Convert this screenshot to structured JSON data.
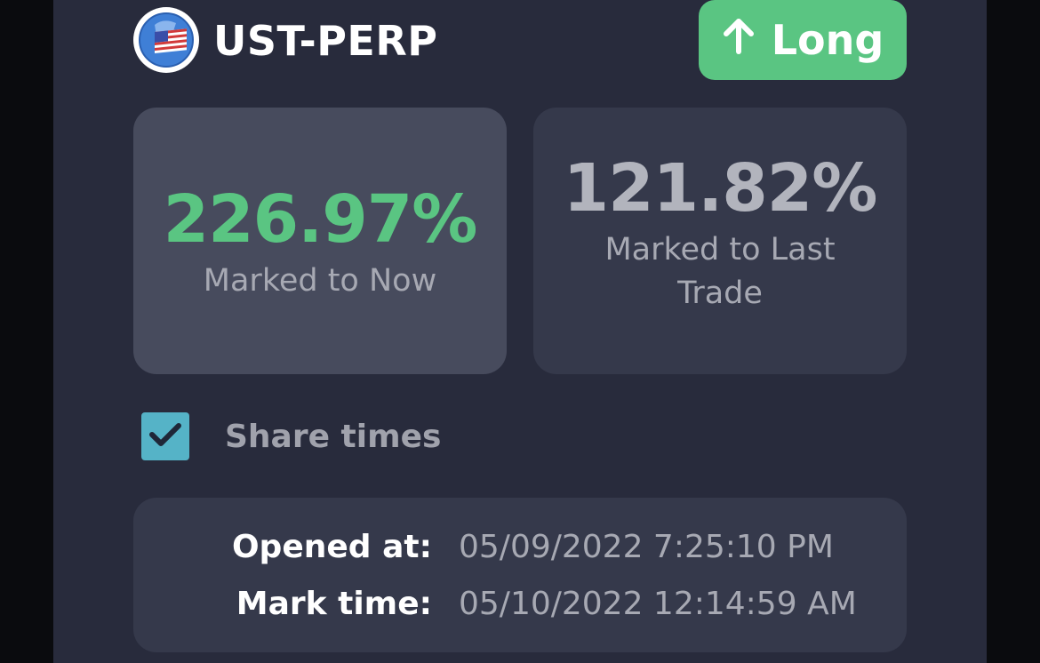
{
  "header": {
    "token_name": "UST-PERP",
    "token_icon": "us-flag-coin-icon",
    "position_label": "Long",
    "position_icon": "arrow-up-icon",
    "accent_color": "#5ac582"
  },
  "cards": {
    "marked_now": {
      "value": "226.97%",
      "label": "Marked to Now"
    },
    "marked_last": {
      "value": "121.82%",
      "label": "Marked to Last Trade"
    }
  },
  "share_times": {
    "label": "Share times",
    "checked": true,
    "checkbox_color": "#55b3c7"
  },
  "times": {
    "opened_label": "Opened at:",
    "opened_value": "05/09/2022 7:25:10 PM",
    "mark_label": "Mark time:",
    "mark_value": "05/10/2022 12:14:59 AM"
  }
}
